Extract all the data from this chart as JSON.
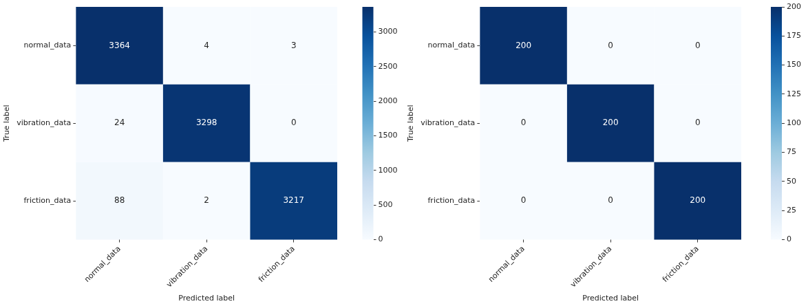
{
  "chart_data": [
    {
      "type": "heatmap",
      "xlabel": "Predicted label",
      "ylabel": "True label",
      "categories": [
        "normal_data",
        "vibration_data",
        "friction_data"
      ],
      "y_categories": [
        "normal_data",
        "vibration_data",
        "friction_data"
      ],
      "cells": [
        [
          3364,
          4,
          3
        ],
        [
          24,
          3298,
          0
        ],
        [
          88,
          2,
          3217
        ]
      ],
      "clim": [
        0,
        3364
      ],
      "cticks": [
        0,
        500,
        1000,
        1500,
        2000,
        2500,
        3000
      ],
      "data_labels": true
    },
    {
      "type": "heatmap",
      "xlabel": "Predicted label",
      "ylabel": "True label",
      "categories": [
        "normal_data",
        "vibration_data",
        "friction_data"
      ],
      "y_categories": [
        "normal_data",
        "vibration_data",
        "friction_data"
      ],
      "cells": [
        [
          200,
          0,
          0
        ],
        [
          0,
          200,
          0
        ],
        [
          0,
          0,
          200
        ]
      ],
      "clim": [
        0,
        200
      ],
      "cticks": [
        0,
        25,
        50,
        75,
        100,
        125,
        150,
        175,
        200
      ],
      "data_labels": true
    }
  ]
}
